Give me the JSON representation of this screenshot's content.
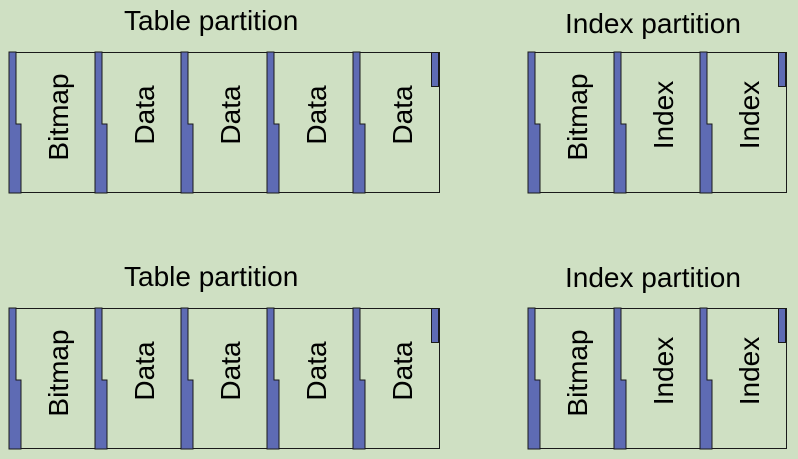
{
  "colors": {
    "background": "#cfe0c3",
    "tab_fill": "#5e6bb4",
    "border": "#1a1a1a"
  },
  "partitions": [
    {
      "title": "Table partition",
      "pages": [
        "Bitmap",
        "Data",
        "Data",
        "Data",
        "Data"
      ]
    },
    {
      "title": "Index partition",
      "pages": [
        "Bitmap",
        "Index",
        "Index"
      ]
    },
    {
      "title": "Table partition",
      "pages": [
        "Bitmap",
        "Data",
        "Data",
        "Data",
        "Data"
      ]
    },
    {
      "title": "Index partition",
      "pages": [
        "Bitmap",
        "Index",
        "Index"
      ]
    }
  ]
}
